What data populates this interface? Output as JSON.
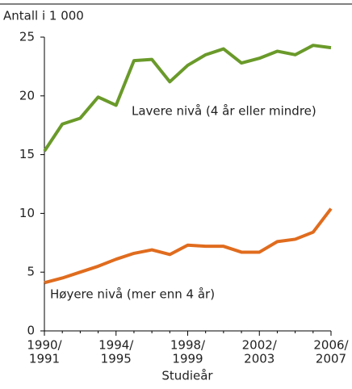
{
  "chart_data": {
    "type": "line",
    "y_label": "Antall i 1 000",
    "x_label": "Studieår",
    "categories": [
      [
        "1990/",
        "1991"
      ],
      null,
      null,
      null,
      [
        "1994/",
        "1995"
      ],
      null,
      null,
      null,
      [
        "1998/",
        "1999"
      ],
      null,
      null,
      null,
      [
        "2002/",
        "2003"
      ],
      null,
      null,
      null,
      [
        "2006/",
        "2007"
      ]
    ],
    "series": [
      {
        "name": "Lavere nivå (4 år eller mindre)",
        "color": "#6a9a2a",
        "values": [
          15.3,
          17.6,
          18.1,
          19.9,
          19.2,
          23.0,
          23.1,
          21.2,
          22.6,
          23.5,
          24.0,
          22.8,
          23.2,
          23.8,
          23.5,
          24.3,
          24.1
        ]
      },
      {
        "name": "Høyere nivå (mer enn 4 år)",
        "color": "#e06c1e",
        "values": [
          4.1,
          4.5,
          5.0,
          5.5,
          6.1,
          6.6,
          6.9,
          6.5,
          7.3,
          7.2,
          7.2,
          6.7,
          6.7,
          7.6,
          7.8,
          8.4,
          10.4
        ]
      }
    ],
    "ylim": [
      0,
      25
    ],
    "yticks": [
      0,
      5,
      10,
      15,
      20,
      25
    ],
    "grid": false
  }
}
